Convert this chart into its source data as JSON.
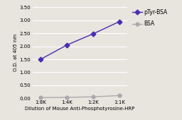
{
  "x_labels": [
    "1:8K",
    "1:4K",
    "1:2K",
    "1:1K"
  ],
  "x_values": [
    1,
    2,
    3,
    4
  ],
  "pTyr_BSA_values": [
    1.5,
    2.05,
    2.48,
    2.95
  ],
  "BSA_values": [
    0.03,
    0.04,
    0.06,
    0.11
  ],
  "pTyr_color": "#4a2db0",
  "BSA_color": "#aaaaaa",
  "ylabel": "O.D. at 405 nm",
  "xlabel": "Dilution of Mouse Anti-Phosphotyrosine-HRP",
  "legend_pTyr": "pTyr-BSA",
  "legend_BSA": "BSA",
  "ylim": [
    0.0,
    3.5
  ],
  "yticks": [
    0.0,
    0.5,
    1.0,
    1.5,
    2.0,
    2.5,
    3.0,
    3.5
  ],
  "background_color": "#e8e5df",
  "axis_fontsize": 5.0,
  "tick_fontsize": 5.0,
  "legend_fontsize": 5.5,
  "linewidth": 1.0,
  "markersize": 3.5
}
